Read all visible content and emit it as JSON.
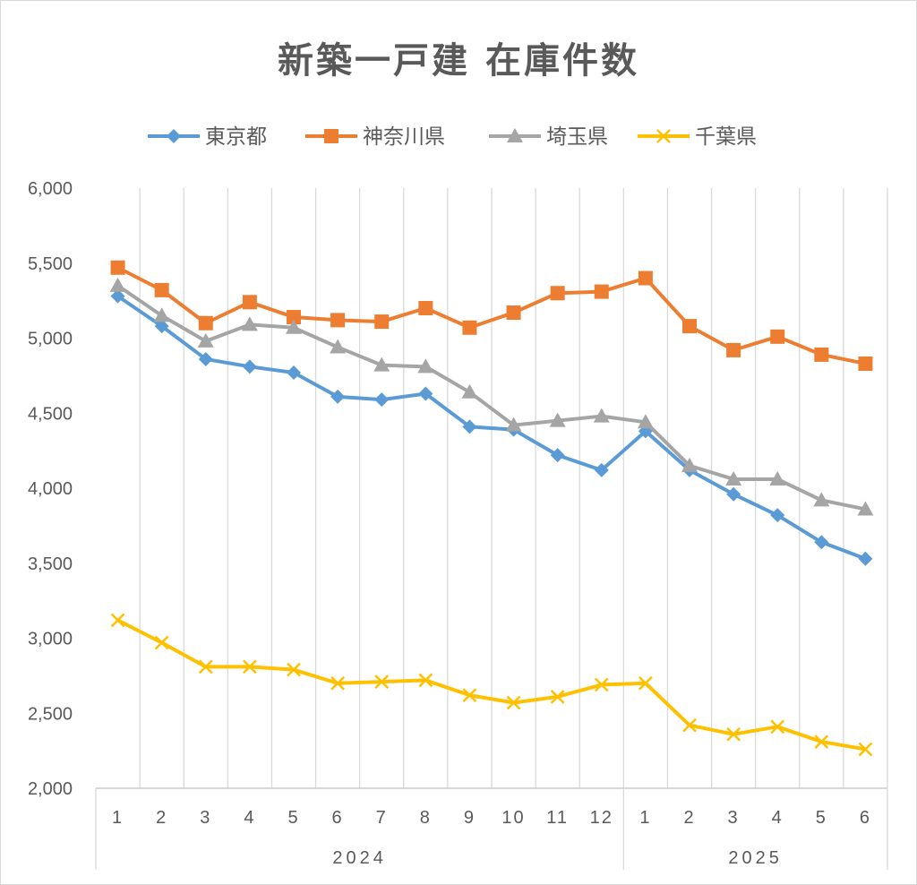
{
  "chart_data": {
    "type": "line",
    "title": "新築一戸建 在庫件数",
    "xlabel": "",
    "ylabel": "",
    "ylim": [
      2000,
      6000
    ],
    "yticks": [
      2000,
      2500,
      3000,
      3500,
      4000,
      4500,
      5000,
      5500,
      6000
    ],
    "ytick_labels": [
      "2,000",
      "2,500",
      "3,000",
      "3,500",
      "4,000",
      "4,500",
      "5,000",
      "5,500",
      "6,000"
    ],
    "categories": [
      "1",
      "2",
      "3",
      "4",
      "5",
      "6",
      "7",
      "8",
      "9",
      "10",
      "11",
      "12",
      "1",
      "2",
      "3",
      "4",
      "5",
      "6"
    ],
    "category_groups": [
      {
        "label": "2024",
        "count": 12
      },
      {
        "label": "2025",
        "count": 6
      }
    ],
    "grid": "vertical",
    "legend_position": "top",
    "series": [
      {
        "name": "東京都",
        "color": "#5B9BD5",
        "marker": "diamond",
        "values": [
          5280,
          5080,
          4860,
          4810,
          4770,
          4610,
          4590,
          4630,
          4410,
          4390,
          4220,
          4120,
          4380,
          4120,
          3960,
          3820,
          3640,
          3530
        ]
      },
      {
        "name": "神奈川県",
        "color": "#ED7D31",
        "marker": "square",
        "values": [
          5470,
          5320,
          5100,
          5240,
          5140,
          5120,
          5110,
          5200,
          5070,
          5170,
          5300,
          5310,
          5400,
          5080,
          4920,
          5010,
          4890,
          4830
        ]
      },
      {
        "name": "埼玉県",
        "color": "#A5A5A5",
        "marker": "triangle",
        "values": [
          5350,
          5150,
          4980,
          5090,
          5070,
          4940,
          4820,
          4810,
          4640,
          4420,
          4450,
          4480,
          4440,
          4150,
          4060,
          4060,
          3920,
          3860
        ]
      },
      {
        "name": "千葉県",
        "color": "#FFC000",
        "marker": "x",
        "values": [
          3120,
          2970,
          2810,
          2810,
          2790,
          2700,
          2710,
          2720,
          2620,
          2570,
          2610,
          2690,
          2700,
          2420,
          2360,
          2410,
          2310,
          2260
        ]
      }
    ]
  }
}
